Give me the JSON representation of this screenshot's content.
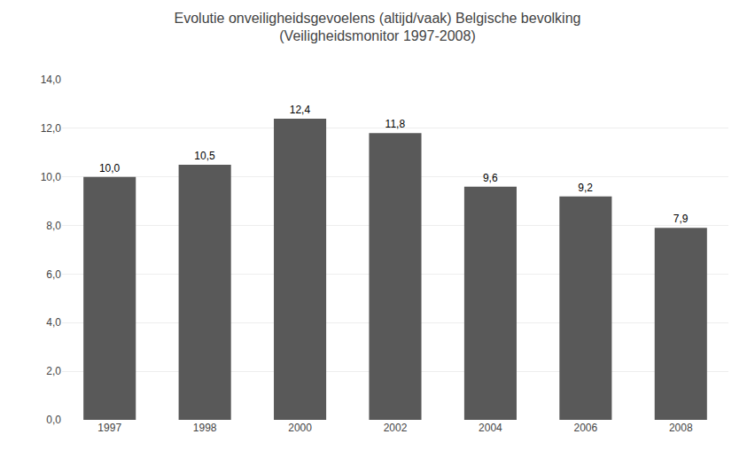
{
  "chart_data": {
    "type": "bar",
    "title": "Evolutie onveiligheidsgevoelens (altijd/vaak) Belgische bevolking\n(Veiligheidsmonitor 1997-2008)",
    "categories": [
      "1997",
      "1998",
      "2000",
      "2002",
      "2004",
      "2006",
      "2008"
    ],
    "values": [
      10.0,
      10.5,
      12.4,
      11.8,
      9.6,
      9.2,
      7.9
    ],
    "value_labels": [
      "10,0",
      "10,5",
      "12,4",
      "11,8",
      "9,6",
      "9,2",
      "7,9"
    ],
    "data_labels": true,
    "color": "#595959",
    "ylim": [
      0,
      14
    ],
    "yticks": [
      {
        "value": 0.0,
        "label": "0,0"
      },
      {
        "value": 2.0,
        "label": "2,0"
      },
      {
        "value": 4.0,
        "label": "4,0"
      },
      {
        "value": 6.0,
        "label": "6,0"
      },
      {
        "value": 8.0,
        "label": "8,0"
      },
      {
        "value": 10.0,
        "label": "10,0"
      },
      {
        "value": 12.0,
        "label": "12,0"
      },
      {
        "value": 14.0,
        "label": "14,0"
      }
    ],
    "grid": true
  }
}
